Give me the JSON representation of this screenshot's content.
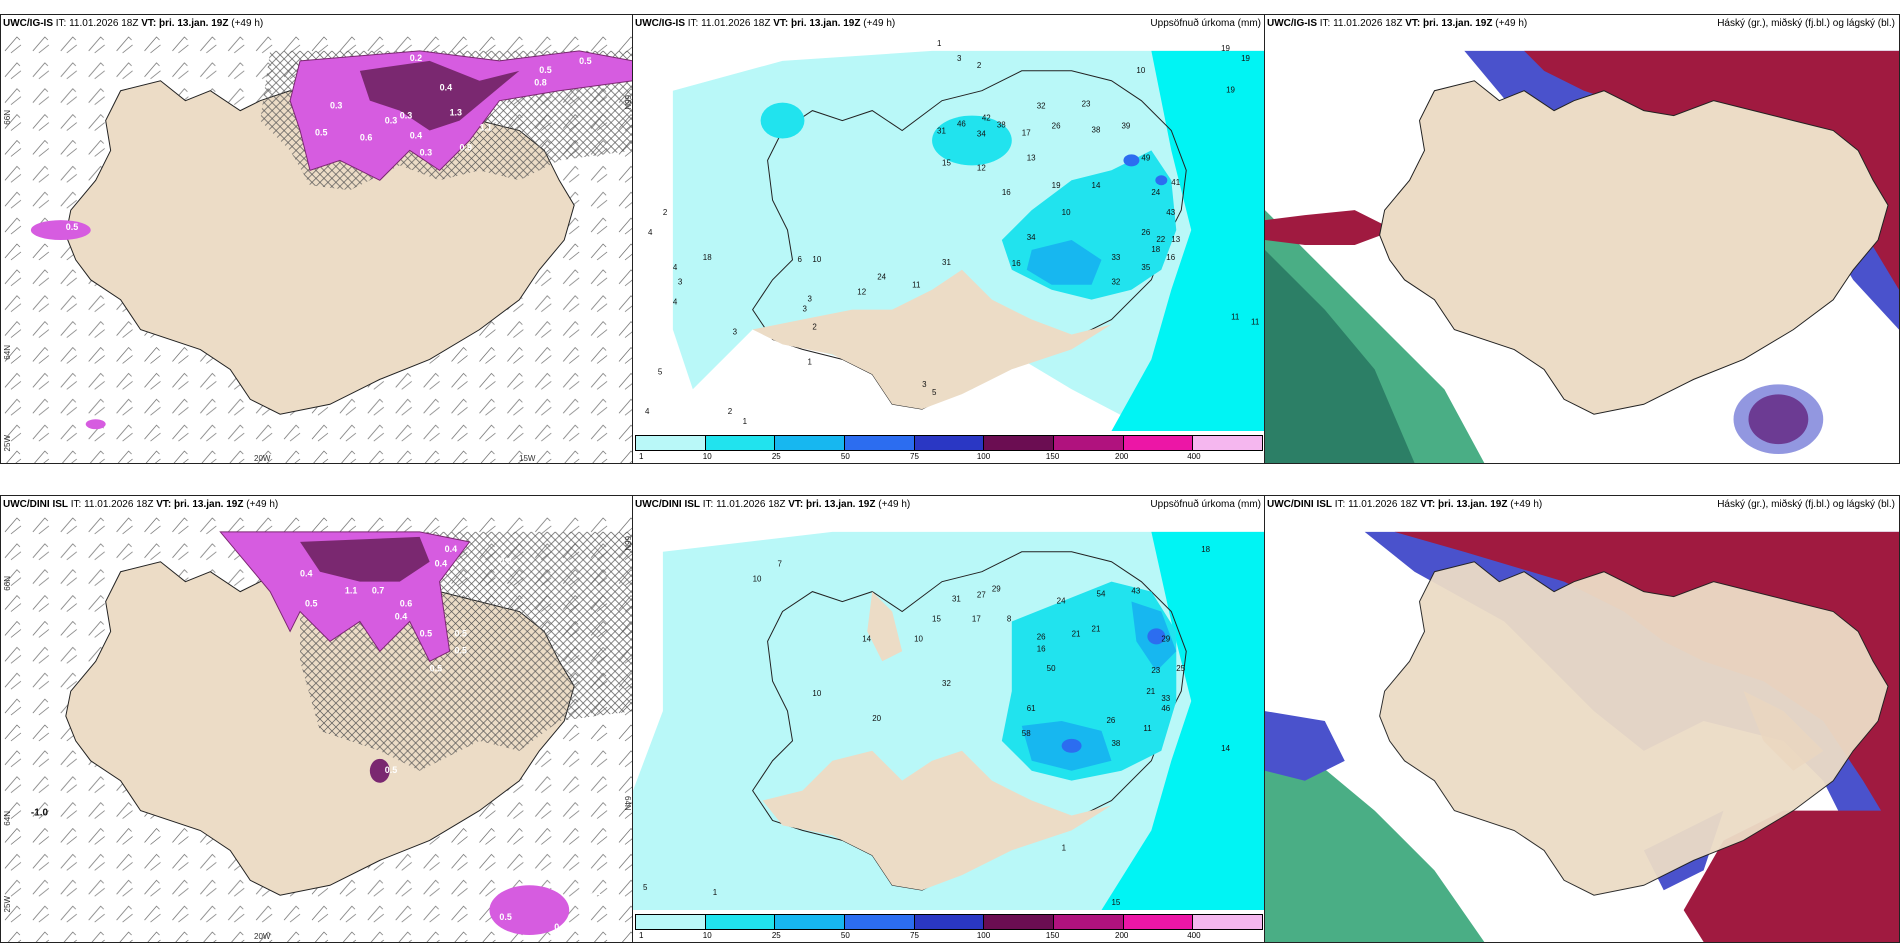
{
  "common": {
    "it": "IT: 11.01.2026 18Z",
    "vt_label": "VT:",
    "vt": "þri. 13.jan. 19Z",
    "lead": "(+49 h)"
  },
  "rows": [
    {
      "model": "UWC/IG-IS"
    },
    {
      "model": "UWC/DINI ISL"
    }
  ],
  "precip_title": "Uppsöfnuð úrkoma (mm)",
  "cloud_title": "Háský (gr.), miðský (fj.bl.) og lágský (bl.)",
  "axes": {
    "lat66": "66N",
    "lat64": "64N",
    "lon25": "25W",
    "lon20": "20W",
    "lon15": "15W",
    "lat66r": "66N",
    "lat64r": "64N",
    "lat64b": "64N"
  },
  "legend": {
    "ticks": [
      "1",
      "10",
      "25",
      "50",
      "75",
      "100",
      "150",
      "200",
      "400"
    ],
    "colors": [
      "#b9f8f8",
      "#21e3ee",
      "#17b7f0",
      "#2c6df0",
      "#2a37c4",
      "#6b0d52",
      "#b0127e",
      "#ec16a6",
      "#f5b7ef"
    ]
  },
  "colors": {
    "land": "#ecdcc6",
    "precip_light": "#b9f8f8",
    "precip_mid": "#21e3ee",
    "ocean_cyan": "#00f4f4",
    "purple": "#d65ce0",
    "dark_purple": "#7a2870",
    "cloud_high": "#a01a40",
    "cloud_mid": "#4a52cc",
    "cloud_low": "#2aa070"
  },
  "panel1": {
    "values": [
      "0.2",
      "0.5",
      "0.5",
      "0.3",
      "0.4",
      "0.3",
      "1.3",
      "0.6",
      "0.3",
      "0.4",
      "0.3",
      "1.1",
      "0.5",
      "0.9",
      "0.8",
      "0.5"
    ]
  },
  "panel2": {
    "values": [
      "3",
      "2",
      "1",
      "19",
      "19",
      "19",
      "10",
      "23",
      "32",
      "26",
      "38",
      "39",
      "31",
      "46",
      "34",
      "42",
      "38",
      "17",
      "15",
      "13",
      "12",
      "19",
      "16",
      "14",
      "10",
      "49",
      "24",
      "43",
      "41",
      "26",
      "22",
      "18",
      "13",
      "16",
      "34",
      "33",
      "35",
      "32",
      "16",
      "11",
      "2",
      "4",
      "4",
      "4",
      "5",
      "4",
      "3",
      "3",
      "18",
      "6",
      "10",
      "24",
      "31",
      "11",
      "12",
      "3",
      "2",
      "1",
      "2",
      "3",
      "11",
      "1",
      "5",
      "3"
    ]
  },
  "panel4": {
    "values": [
      "0.4",
      "0.4",
      "0.4",
      "0.3",
      "1.1",
      "0.7",
      "0.5",
      "0.6",
      "0.4",
      "0.5",
      "0.5",
      "0.5",
      "0.5",
      "-1.0",
      "0.5",
      "1.1",
      "0.5",
      "0.9"
    ]
  },
  "panel5": {
    "values": [
      "18",
      "54",
      "43",
      "24",
      "31",
      "50",
      "21",
      "16",
      "27",
      "17",
      "8",
      "15",
      "10",
      "20",
      "29",
      "26",
      "21",
      "25",
      "23",
      "21",
      "33",
      "46",
      "61",
      "58",
      "26",
      "38",
      "11",
      "29",
      "14",
      "7",
      "10",
      "32",
      "14",
      "10",
      "5",
      "1",
      "15",
      "1"
    ]
  }
}
